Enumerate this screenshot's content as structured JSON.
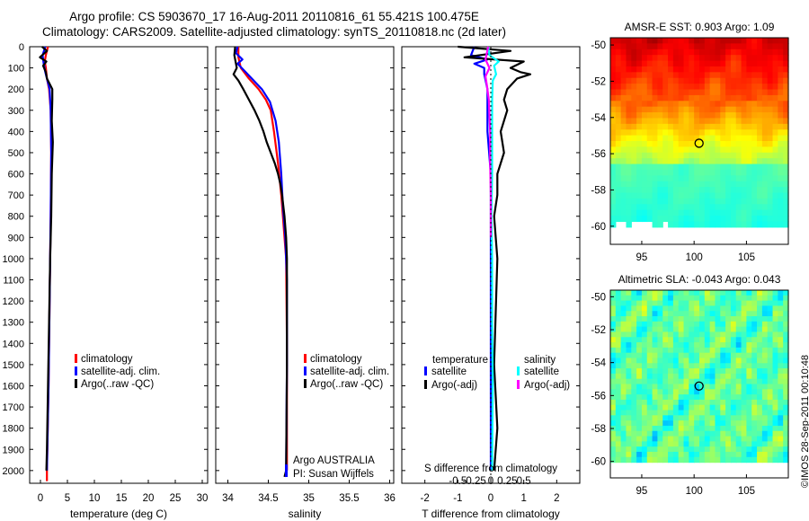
{
  "header": {
    "line1": "Argo profile: CS 5903670_17 16-Aug-2011 20110816_61 55.421S 100.475E",
    "line2": "Climatology: CARS2009. Satellite-adjusted climatology: synTS_20110818.nc (2d later)"
  },
  "side_label": "©IMOS 28-Sep-2011 00:10:48",
  "colors": {
    "climatology": "#ff0000",
    "satellite": "#0000ff",
    "argo": "#000000",
    "salinity_satellite": "#00ffff",
    "salinity_argo": "#ff00ff"
  },
  "depth_axis": {
    "min": 0,
    "max": 2060,
    "ticks": [
      0,
      100,
      200,
      300,
      400,
      500,
      600,
      700,
      800,
      900,
      1000,
      1100,
      1200,
      1300,
      1400,
      1500,
      1600,
      1700,
      1800,
      1900,
      2000
    ]
  },
  "chart_data": [
    {
      "type": "line",
      "xlabel": "temperature (deg C)",
      "xlim": [
        -2,
        31
      ],
      "xticks": [
        0,
        5,
        10,
        15,
        20,
        25,
        30
      ],
      "legend": [
        "climatology",
        "satellite-adj. clim.",
        "Argo(..raw -QC)"
      ],
      "series": [
        {
          "name": "climatology",
          "color_key": "climatology",
          "points": [
            [
              1.4,
              0
            ],
            [
              1.0,
              40
            ],
            [
              0.8,
              70
            ],
            [
              1.0,
              100
            ],
            [
              1.2,
              150
            ],
            [
              1.6,
              200
            ],
            [
              1.9,
              300
            ],
            [
              2.0,
              500
            ],
            [
              1.9,
              800
            ],
            [
              1.7,
              1200
            ],
            [
              1.5,
              1600
            ],
            [
              1.2,
              2000
            ],
            [
              1.2,
              2050
            ]
          ]
        },
        {
          "name": "satellite-adj. clim.",
          "color_key": "satellite",
          "points": [
            [
              0.9,
              0
            ],
            [
              0.4,
              40
            ],
            [
              0.6,
              80
            ],
            [
              0.9,
              120
            ],
            [
              1.3,
              160
            ],
            [
              1.7,
              200
            ],
            [
              1.9,
              300
            ],
            [
              2.0,
              500
            ],
            [
              1.9,
              800
            ],
            [
              1.7,
              1200
            ],
            [
              1.5,
              1600
            ],
            [
              1.2,
              2000
            ]
          ]
        },
        {
          "name": "Argo(..raw -QC)",
          "color_key": "argo",
          "points": [
            [
              0.3,
              0
            ],
            [
              1.2,
              20
            ],
            [
              -0.1,
              50
            ],
            [
              1.1,
              70
            ],
            [
              0.5,
              90
            ],
            [
              1.0,
              120
            ],
            [
              1.2,
              150
            ],
            [
              1.8,
              180
            ],
            [
              2.2,
              200
            ],
            [
              2.2,
              250
            ],
            [
              2.1,
              350
            ],
            [
              2.3,
              450
            ],
            [
              2.1,
              600
            ],
            [
              2.0,
              800
            ],
            [
              1.8,
              1000
            ],
            [
              1.6,
              1300
            ],
            [
              1.4,
              1600
            ],
            [
              1.2,
              1900
            ],
            [
              1.1,
              2000
            ]
          ]
        }
      ]
    },
    {
      "type": "line",
      "xlabel": "salinity",
      "xlim": [
        33.85,
        36.05
      ],
      "xticks": [
        34,
        34.5,
        35,
        35.5,
        36
      ],
      "legend": [
        "climatology",
        "satellite-adj. clim.",
        "Argo(..raw -QC)"
      ],
      "annotation": [
        "Argo AUSTRALIA",
        "PI: Susan Wijffels"
      ],
      "series": [
        {
          "name": "climatology",
          "color_key": "climatology",
          "points": [
            [
              34.13,
              0
            ],
            [
              34.13,
              50
            ],
            [
              34.16,
              100
            ],
            [
              34.26,
              150
            ],
            [
              34.38,
              200
            ],
            [
              34.47,
              250
            ],
            [
              34.53,
              300
            ],
            [
              34.57,
              400
            ],
            [
              34.62,
              550
            ],
            [
              34.66,
              700
            ],
            [
              34.69,
              850
            ],
            [
              34.72,
              1000
            ],
            [
              34.73,
              1400
            ],
            [
              34.73,
              2000
            ]
          ]
        },
        {
          "name": "satellite-adj. clim.",
          "color_key": "satellite",
          "points": [
            [
              34.12,
              0
            ],
            [
              34.1,
              30
            ],
            [
              34.18,
              60
            ],
            [
              34.12,
              80
            ],
            [
              34.22,
              120
            ],
            [
              34.32,
              160
            ],
            [
              34.42,
              200
            ],
            [
              34.52,
              260
            ],
            [
              34.59,
              350
            ],
            [
              34.63,
              450
            ],
            [
              34.66,
              600
            ],
            [
              34.68,
              750
            ],
            [
              34.71,
              900
            ],
            [
              34.73,
              1100
            ],
            [
              34.73,
              1500
            ],
            [
              34.72,
              2000
            ]
          ]
        },
        {
          "name": "Argo(..raw -QC)",
          "color_key": "argo",
          "points": [
            [
              34.09,
              0
            ],
            [
              34.08,
              40
            ],
            [
              34.11,
              100
            ],
            [
              34.07,
              130
            ],
            [
              34.13,
              160
            ],
            [
              34.19,
              200
            ],
            [
              34.26,
              250
            ],
            [
              34.33,
              300
            ],
            [
              34.39,
              350
            ],
            [
              34.44,
              400
            ],
            [
              34.48,
              450
            ],
            [
              34.53,
              500
            ],
            [
              34.58,
              550
            ],
            [
              34.62,
              600
            ],
            [
              34.65,
              650
            ],
            [
              34.67,
              700
            ],
            [
              34.7,
              800
            ],
            [
              34.72,
              900
            ],
            [
              34.73,
              1000
            ],
            [
              34.73,
              1500
            ],
            [
              34.72,
              2000
            ],
            [
              34.7,
              2030
            ]
          ]
        }
      ]
    },
    {
      "type": "line",
      "xlabel": "T difference from climatology",
      "xlim": [
        -2.7,
        2.7
      ],
      "xticks": [
        -2,
        -1,
        0,
        1,
        2
      ],
      "top_axis_label": "S difference from climatology",
      "top_xticks": [
        -0.5,
        -0.25,
        0,
        0.25,
        0.5
      ],
      "legend_left_title": "temperature",
      "legend_right_title": "salinity",
      "legend_left": [
        "satellite",
        "Argo(-adj)"
      ],
      "legend_right": [
        "satellite",
        "Argo(-adj)"
      ],
      "series": [
        {
          "name": "temperature satellite",
          "color_key": "satellite",
          "points": [
            [
              -0.5,
              0
            ],
            [
              -0.6,
              40
            ],
            [
              -0.1,
              60
            ],
            [
              -0.5,
              80
            ],
            [
              -0.2,
              100
            ],
            [
              -0.2,
              130
            ],
            [
              -0.1,
              200
            ],
            [
              -0.1,
              400
            ],
            [
              0.0,
              600
            ],
            [
              0.0,
              800
            ],
            [
              0.0,
              1000
            ],
            [
              0.0,
              1500
            ],
            [
              0.0,
              2000
            ]
          ]
        },
        {
          "name": "temperature Argo(-adj)",
          "color_key": "argo",
          "points": [
            [
              -1.0,
              0
            ],
            [
              0.6,
              20
            ],
            [
              -0.8,
              50
            ],
            [
              1.0,
              70
            ],
            [
              0.6,
              100
            ],
            [
              0.9,
              120
            ],
            [
              1.2,
              130
            ],
            [
              0.8,
              150
            ],
            [
              0.5,
              200
            ],
            [
              0.4,
              250
            ],
            [
              0.5,
              300
            ],
            [
              0.3,
              400
            ],
            [
              0.4,
              500
            ],
            [
              0.2,
              600
            ],
            [
              0.2,
              700
            ],
            [
              0.1,
              800
            ],
            [
              0.2,
              1000
            ],
            [
              0.1,
              1500
            ],
            [
              0.2,
              1800
            ],
            [
              0.1,
              2000
            ]
          ]
        },
        {
          "name": "salinity satellite",
          "color_key": "salinity_satellite",
          "points": [
            [
              -0.04,
              0
            ],
            [
              -0.02,
              40
            ],
            [
              0.12,
              70
            ],
            [
              0.05,
              90
            ],
            [
              0.08,
              130
            ],
            [
              0.03,
              160
            ],
            [
              0.02,
              250
            ],
            [
              0.02,
              400
            ],
            [
              0.02,
              600
            ],
            [
              0.01,
              800
            ],
            [
              0.02,
              1000
            ],
            [
              0.02,
              1300
            ],
            [
              0.03,
              1600
            ],
            [
              0.02,
              2000
            ]
          ]
        },
        {
          "name": "salinity Argo(-adj)",
          "color_key": "salinity_argo",
          "points": [
            [
              -0.04,
              0
            ],
            [
              -0.08,
              60
            ],
            [
              -0.02,
              100
            ],
            [
              -0.08,
              140
            ],
            [
              -0.06,
              180
            ],
            [
              -0.03,
              250
            ],
            [
              -0.01,
              400
            ],
            [
              -0.01,
              550
            ],
            [
              0.0,
              700
            ],
            [
              0.0,
              900
            ]
          ]
        }
      ]
    },
    {
      "type": "heatmap",
      "title": "AMSR-E SST: 0.903 Argo: 1.09",
      "xlim": [
        92,
        109
      ],
      "ylim": [
        -61,
        -49.6
      ],
      "xticks": [
        95,
        100,
        105
      ],
      "yticks": [
        -50,
        -52,
        -54,
        -56,
        -58,
        -60
      ],
      "marker": [
        100.475,
        -55.421
      ]
    },
    {
      "type": "heatmap",
      "title": "Altimetric SLA: -0.043 Argo: 0.043",
      "xlim": [
        92,
        109
      ],
      "ylim": [
        -61,
        -49.6
      ],
      "xticks": [
        95,
        100,
        105
      ],
      "yticks": [
        -50,
        -52,
        -54,
        -56,
        -58,
        -60
      ],
      "marker": [
        100.475,
        -55.421
      ]
    }
  ]
}
